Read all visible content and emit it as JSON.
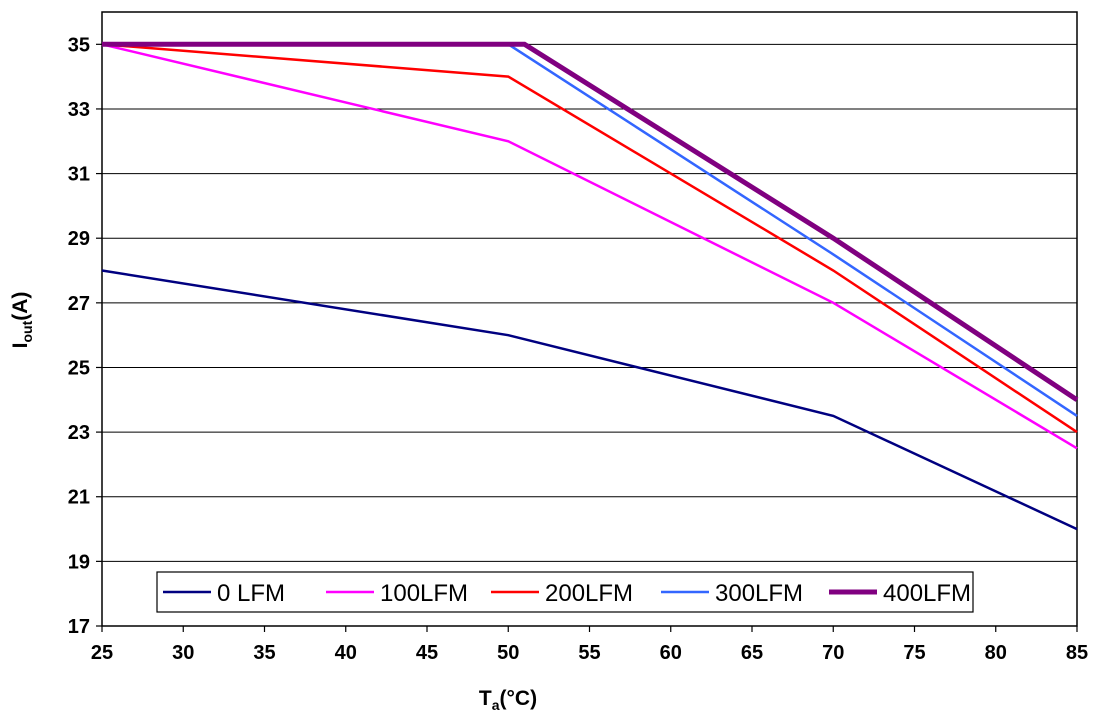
{
  "chart_data": {
    "type": "line",
    "xlabel": {
      "main": "T",
      "sub": "a",
      "rest": "(°C)"
    },
    "ylabel": {
      "main": "I",
      "sub": "out",
      "rest": "(A)"
    },
    "xlim": [
      25,
      85
    ],
    "ylim": [
      17,
      36
    ],
    "xticks": [
      25,
      30,
      35,
      40,
      45,
      50,
      55,
      60,
      65,
      70,
      75,
      80,
      85
    ],
    "yticks": [
      17,
      19,
      21,
      23,
      25,
      27,
      29,
      31,
      33,
      35
    ],
    "grid": "horizontal",
    "legend_position": "bottom-left",
    "series": [
      {
        "name": "0 LFM",
        "color": "#000080",
        "x": [
          25,
          50,
          70,
          85
        ],
        "y": [
          28,
          26,
          23.5,
          20
        ]
      },
      {
        "name": "100LFM",
        "color": "#ff00ff",
        "x": [
          25,
          50,
          70,
          85
        ],
        "y": [
          35,
          32,
          27,
          22.5
        ]
      },
      {
        "name": "200LFM",
        "color": "#ff0000",
        "x": [
          25,
          50,
          70,
          85
        ],
        "y": [
          35,
          34,
          28,
          23
        ]
      },
      {
        "name": "300LFM",
        "color": "#3366ff",
        "x": [
          25,
          50,
          70,
          85
        ],
        "y": [
          35,
          35,
          28.5,
          23.5
        ]
      },
      {
        "name": "400LFM",
        "color": "#800080",
        "x": [
          25,
          51,
          70,
          85
        ],
        "y": [
          35,
          35,
          29,
          24
        ]
      }
    ]
  }
}
